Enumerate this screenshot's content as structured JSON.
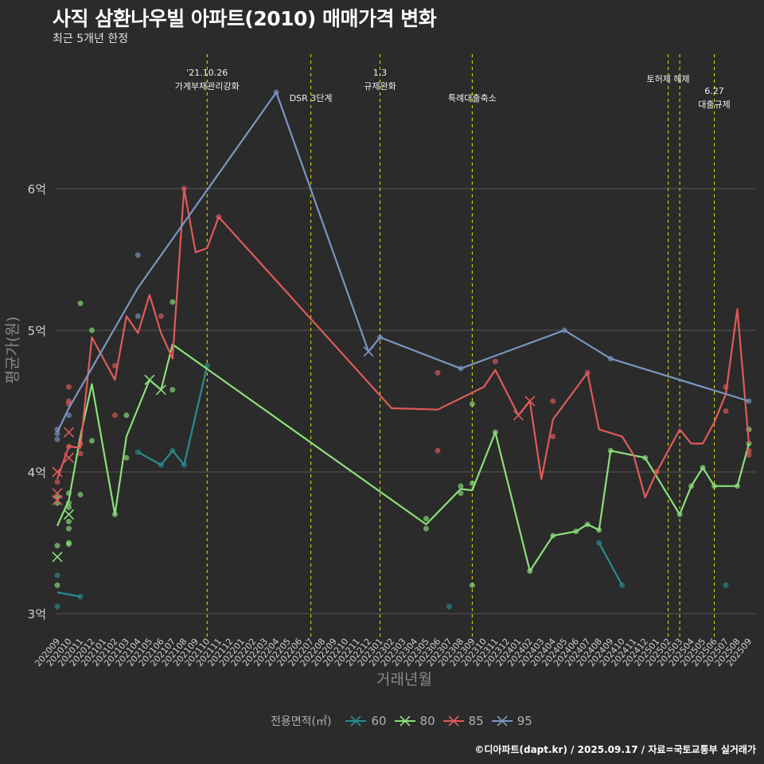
{
  "header": {
    "title": "사직 삼환나우빌 아파트(2010) 매매가격 변화",
    "subtitle": "최근 5개년 한정"
  },
  "footer": {
    "credit": "©디아파트(dapt.kr) / 2025.09.17 / 자료=국토교통부 실거래가"
  },
  "legend": {
    "title": "전용면적(㎡)"
  },
  "colors": {
    "background": "#2b2b2b",
    "grid": "#555555",
    "event_line": "#e6e600",
    "60": "#2a8c8c",
    "80": "#8be07a",
    "85": "#e05a5a",
    "95": "#7a96c2"
  },
  "chart_data": {
    "type": "line",
    "xlabel": "거래년월",
    "ylabel": "평균가(원)",
    "x_categories": [
      "202009",
      "202010",
      "202011",
      "202012",
      "202101",
      "202102",
      "202103",
      "202104",
      "202105",
      "202106",
      "202107",
      "202108",
      "202109",
      "202110",
      "202111",
      "202112",
      "202201",
      "202202",
      "202203",
      "202204",
      "202205",
      "202206",
      "202207",
      "202208",
      "202209",
      "202210",
      "202211",
      "202212",
      "202301",
      "202302",
      "202303",
      "202304",
      "202305",
      "202306",
      "202307",
      "202308",
      "202309",
      "202310",
      "202311",
      "202312",
      "202401",
      "202402",
      "202403",
      "202404",
      "202405",
      "202406",
      "202407",
      "202408",
      "202409",
      "202410",
      "202411",
      "202412",
      "202501",
      "202502",
      "202503",
      "202504",
      "202505",
      "202506",
      "202507",
      "202508",
      "202509"
    ],
    "y_ticks": [
      {
        "value": 3.0,
        "label": "3억"
      },
      {
        "value": 4.0,
        "label": "4억"
      },
      {
        "value": 5.0,
        "label": "5억"
      },
      {
        "value": 6.0,
        "label": "6억"
      }
    ],
    "ylim": [
      2.9,
      7.0
    ],
    "y_unit": "억",
    "legend_position": "bottom",
    "grid": true,
    "events": [
      {
        "month": "202110",
        "label": "'21.10.26\n가계부채관리강화",
        "row": 0
      },
      {
        "month": "202207",
        "label": "DSR 3단계",
        "row": 1
      },
      {
        "month": "202301",
        "label": "1.3\n규제완화",
        "row": 0
      },
      {
        "month": "202309",
        "label": "특례대출축소",
        "row": 1
      },
      {
        "month": "202502",
        "label": "토허제 해제",
        "row": 0
      },
      {
        "month": "202503",
        "label": "",
        "row": 0
      },
      {
        "month": "202506",
        "label": "6.27\n대출규제",
        "row": 0.5
      }
    ],
    "series": [
      {
        "name": "60",
        "line": [
          [
            "202009",
            3.15
          ],
          [
            "202011",
            3.12
          ]
        ],
        "line2": [
          [
            "202104",
            4.14
          ],
          [
            "202106",
            4.05
          ],
          [
            "202107",
            4.15
          ],
          [
            "202108",
            4.05
          ],
          [
            "202110",
            4.75
          ]
        ],
        "line3": [
          [
            "202408",
            3.5
          ],
          [
            "202410",
            3.2
          ]
        ],
        "points": [
          [
            "202009",
            3.05
          ],
          [
            "202009",
            3.27
          ],
          [
            "202011",
            3.12
          ],
          [
            "202104",
            4.14
          ],
          [
            "202106",
            4.05
          ],
          [
            "202107",
            4.15
          ],
          [
            "202108",
            4.05
          ],
          [
            "202110",
            4.75
          ],
          [
            "202307",
            3.05
          ],
          [
            "202408",
            3.5
          ],
          [
            "202410",
            3.2
          ],
          [
            "202507",
            3.2
          ]
        ],
        "crosses": []
      },
      {
        "name": "80",
        "line": [
          [
            "202009",
            3.62
          ],
          [
            "202010",
            3.8
          ],
          [
            "202011",
            4.25
          ],
          [
            "202012",
            4.62
          ],
          [
            "202102",
            3.7
          ],
          [
            "202103",
            4.25
          ],
          [
            "202105",
            4.65
          ],
          [
            "202106",
            4.58
          ],
          [
            "202107",
            4.9
          ],
          [
            "202305",
            3.63
          ],
          [
            "202308",
            3.88
          ],
          [
            "202309",
            3.87
          ],
          [
            "202311",
            4.28
          ],
          [
            "202402",
            3.3
          ],
          [
            "202404",
            3.55
          ],
          [
            "202406",
            3.58
          ],
          [
            "202407",
            3.63
          ],
          [
            "202408",
            3.59
          ],
          [
            "202409",
            4.15
          ],
          [
            "202412",
            4.1
          ],
          [
            "202503",
            3.7
          ],
          [
            "202504",
            3.9
          ],
          [
            "202505",
            4.03
          ],
          [
            "202506",
            3.9
          ],
          [
            "202508",
            3.9
          ],
          [
            "202509",
            4.2
          ]
        ],
        "points": [
          [
            "202009",
            3.82
          ],
          [
            "202009",
            3.78
          ],
          [
            "202009",
            3.48
          ],
          [
            "202009",
            3.2
          ],
          [
            "202010",
            3.78
          ],
          [
            "202010",
            3.75
          ],
          [
            "202010",
            3.65
          ],
          [
            "202010",
            3.6
          ],
          [
            "202010",
            3.5
          ],
          [
            "202010",
            3.49
          ],
          [
            "202010",
            3.85
          ],
          [
            "202011",
            5.19
          ],
          [
            "202011",
            3.84
          ],
          [
            "202012",
            4.22
          ],
          [
            "202012",
            5.0
          ],
          [
            "202102",
            3.7
          ],
          [
            "202103",
            4.1
          ],
          [
            "202103",
            4.4
          ],
          [
            "202107",
            5.2
          ],
          [
            "202107",
            4.58
          ],
          [
            "202305",
            3.67
          ],
          [
            "202305",
            3.6
          ],
          [
            "202308",
            3.85
          ],
          [
            "202308",
            3.9
          ],
          [
            "202309",
            3.92
          ],
          [
            "202309",
            4.48
          ],
          [
            "202309",
            3.2
          ],
          [
            "202311",
            4.28
          ],
          [
            "202402",
            3.3
          ],
          [
            "202404",
            3.55
          ],
          [
            "202406",
            3.58
          ],
          [
            "202407",
            3.63
          ],
          [
            "202408",
            3.59
          ],
          [
            "202409",
            4.15
          ],
          [
            "202412",
            4.1
          ],
          [
            "202503",
            3.7
          ],
          [
            "202504",
            3.9
          ],
          [
            "202505",
            4.03
          ],
          [
            "202506",
            3.9
          ],
          [
            "202508",
            3.9
          ],
          [
            "202509",
            4.3
          ],
          [
            "202509",
            4.2
          ]
        ],
        "crosses": [
          [
            "202009",
            3.4
          ],
          [
            "202010",
            3.7
          ],
          [
            "202105",
            4.65
          ],
          [
            "202106",
            4.58
          ]
        ]
      },
      {
        "name": "85",
        "line": [
          [
            "202009",
            3.95
          ],
          [
            "202010",
            4.18
          ],
          [
            "202011",
            4.17
          ],
          [
            "202012",
            4.95
          ],
          [
            "202102",
            4.65
          ],
          [
            "202103",
            5.1
          ],
          [
            "202104",
            4.98
          ],
          [
            "202105",
            5.25
          ],
          [
            "202106",
            4.98
          ],
          [
            "202107",
            4.8
          ],
          [
            "202108",
            6.0
          ],
          [
            "202109",
            5.55
          ],
          [
            "202110",
            5.58
          ],
          [
            "202111",
            5.8
          ],
          [
            "202302",
            4.45
          ],
          [
            "202306",
            4.44
          ],
          [
            "202310",
            4.6
          ],
          [
            "202311",
            4.72
          ],
          [
            "202401",
            4.4
          ],
          [
            "202402",
            4.5
          ],
          [
            "202403",
            3.95
          ],
          [
            "202404",
            4.37
          ],
          [
            "202407",
            4.7
          ],
          [
            "202408",
            4.3
          ],
          [
            "202410",
            4.25
          ],
          [
            "202411",
            4.12
          ],
          [
            "202412",
            3.82
          ],
          [
            "202501",
            4.0
          ],
          [
            "202503",
            4.3
          ],
          [
            "202504",
            4.2
          ],
          [
            "202505",
            4.2
          ],
          [
            "202506",
            4.35
          ],
          [
            "202507",
            4.55
          ],
          [
            "202508",
            5.15
          ],
          [
            "202509",
            4.2
          ]
        ],
        "points": [
          [
            "202009",
            3.93
          ],
          [
            "202010",
            4.5
          ],
          [
            "202010",
            4.48
          ],
          [
            "202010",
            4.6
          ],
          [
            "202010",
            4.18
          ],
          [
            "202011",
            4.13
          ],
          [
            "202011",
            4.2
          ],
          [
            "202102",
            4.75
          ],
          [
            "202102",
            4.4
          ],
          [
            "202106",
            5.1
          ],
          [
            "202108",
            6.0
          ],
          [
            "202111",
            5.8
          ],
          [
            "202306",
            4.7
          ],
          [
            "202306",
            4.15
          ],
          [
            "202311",
            4.78
          ],
          [
            "202404",
            4.5
          ],
          [
            "202404",
            4.25
          ],
          [
            "202407",
            4.7
          ],
          [
            "202501",
            4.0
          ],
          [
            "202507",
            4.6
          ],
          [
            "202507",
            4.43
          ],
          [
            "202509",
            4.12
          ],
          [
            "202509",
            4.15
          ]
        ],
        "crosses": [
          [
            "202009",
            4.0
          ],
          [
            "202009",
            3.85
          ],
          [
            "202009",
            3.8
          ],
          [
            "202010",
            4.28
          ],
          [
            "202010",
            4.1
          ],
          [
            "202401",
            4.4
          ],
          [
            "202402",
            4.5
          ]
        ]
      },
      {
        "name": "95",
        "line": [
          [
            "202009",
            4.28
          ],
          [
            "202010",
            4.45
          ],
          [
            "202104",
            5.3
          ],
          [
            "202204",
            6.68
          ],
          [
            "202212",
            4.85
          ],
          [
            "202301",
            4.95
          ],
          [
            "202308",
            4.73
          ],
          [
            "202405",
            5.0
          ],
          [
            "202409",
            4.8
          ],
          [
            "202509",
            4.5
          ]
        ],
        "points": [
          [
            "202009",
            4.3
          ],
          [
            "202009",
            4.27
          ],
          [
            "202009",
            4.23
          ],
          [
            "202010",
            4.4
          ],
          [
            "202104",
            5.53
          ],
          [
            "202104",
            5.1
          ],
          [
            "202204",
            6.68
          ],
          [
            "202301",
            4.95
          ],
          [
            "202308",
            4.73
          ],
          [
            "202405",
            5.0
          ],
          [
            "202409",
            4.8
          ],
          [
            "202509",
            4.5
          ]
        ],
        "crosses": [
          [
            "202212",
            4.85
          ]
        ]
      }
    ]
  }
}
